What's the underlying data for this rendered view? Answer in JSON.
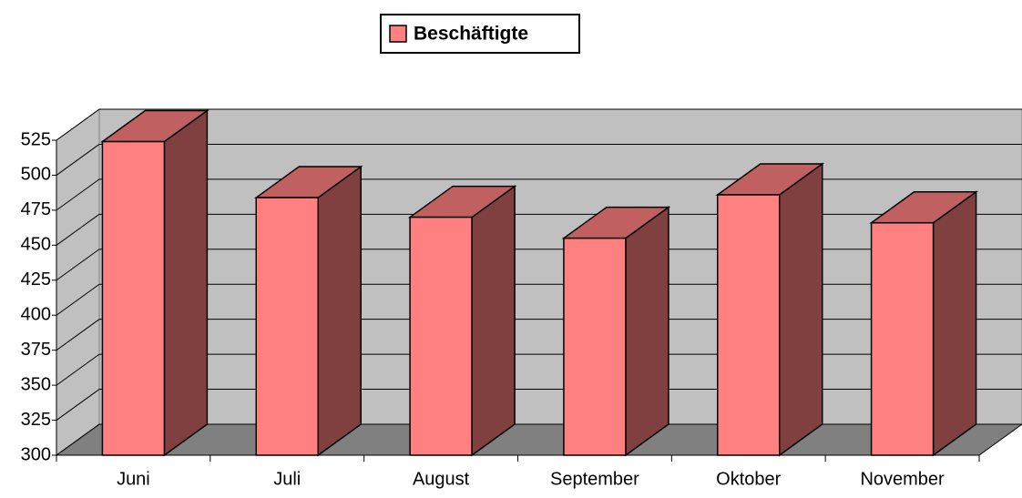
{
  "chart_data": {
    "type": "bar3d",
    "categories": [
      "Juni",
      "Juli",
      "August",
      "September",
      "Oktober",
      "November"
    ],
    "series": [
      {
        "name": "Beschäftigte",
        "color": "#ff8080",
        "values": [
          524,
          484,
          470,
          455,
          486,
          466
        ]
      }
    ],
    "ylim": [
      300,
      525
    ],
    "yticks": [
      300,
      325,
      350,
      375,
      400,
      425,
      450,
      475,
      500,
      525
    ],
    "grid": true,
    "legend": "top"
  }
}
